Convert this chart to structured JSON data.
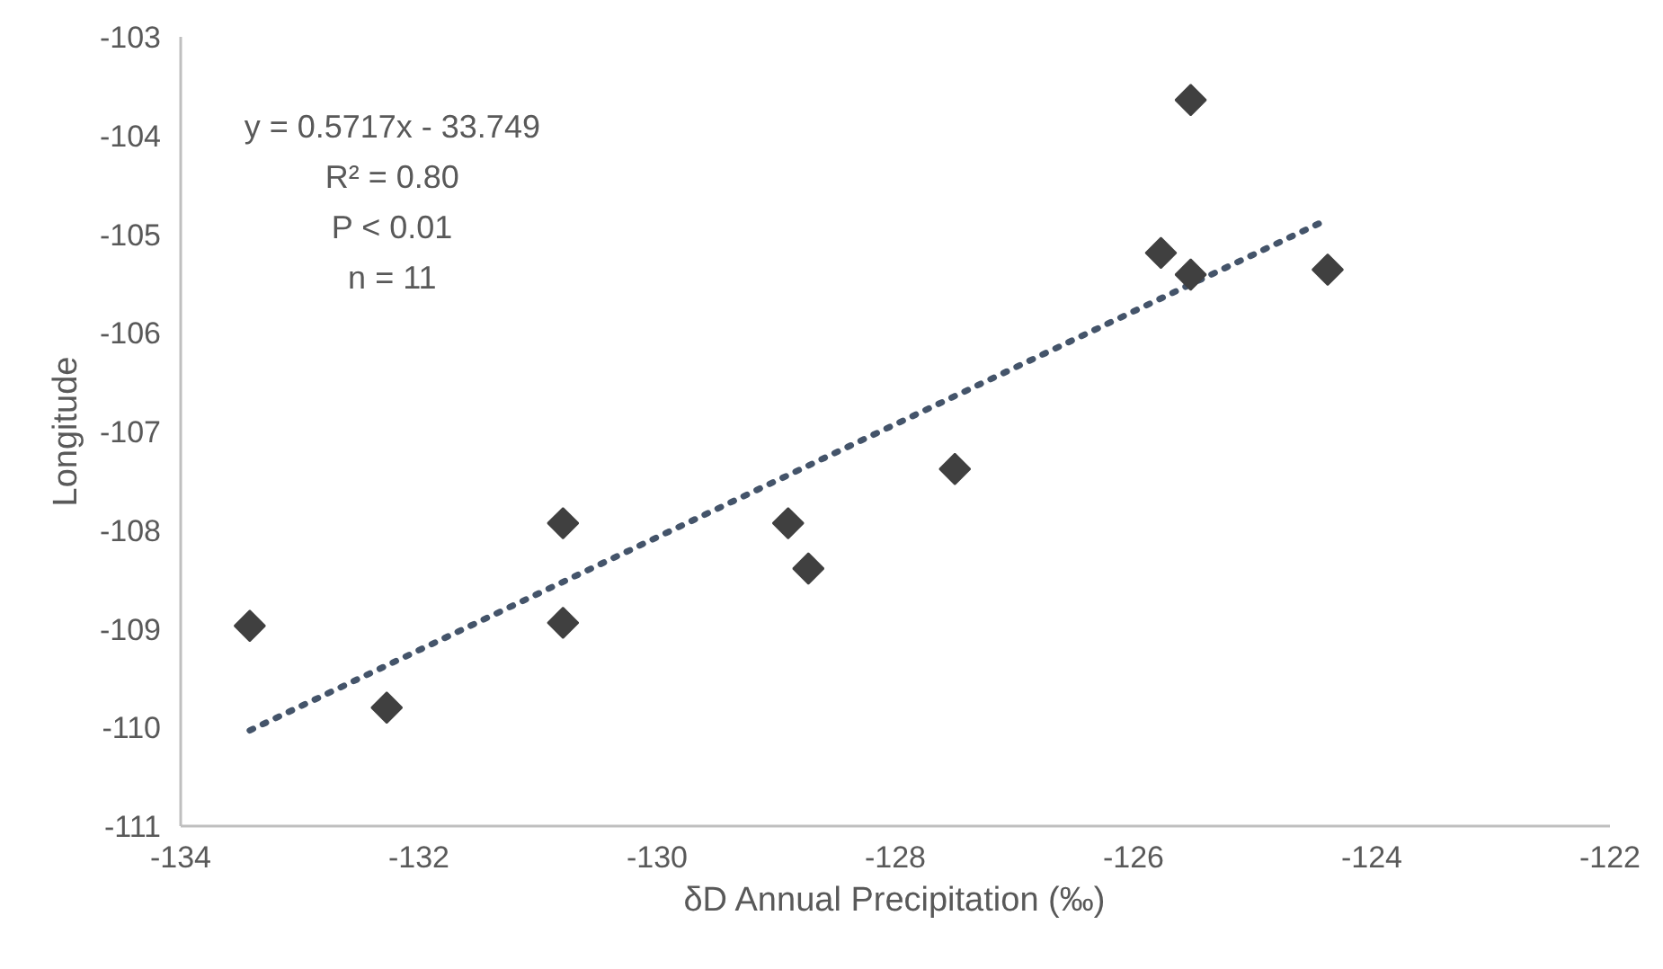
{
  "chart_data": {
    "type": "scatter",
    "xlabel": "δD Annual Precipitation (‰)",
    "ylabel": "Longitude",
    "xlim": [
      -134,
      -122
    ],
    "xticks": [
      -134,
      -132,
      -130,
      -128,
      -126,
      -124,
      -122
    ],
    "ylim": [
      -111,
      -103
    ],
    "yticks": [
      -111,
      -110,
      -109,
      -108,
      -107,
      -106,
      -105,
      -104,
      -103
    ],
    "grid": false,
    "series": [
      {
        "marker": "diamond",
        "color": "#404040",
        "x": [
          -133.42,
          -132.27,
          -130.79,
          -130.79,
          -128.9,
          -128.73,
          -127.5,
          -125.77,
          -125.52,
          -125.52,
          -124.37
        ],
        "values": [
          -108.97,
          -109.8,
          -107.93,
          -108.94,
          -107.93,
          -108.39,
          -107.38,
          -105.19,
          -103.64,
          -105.41,
          -105.36
        ]
      },
      {
        "type": "line",
        "color": "#44546a",
        "line_style": "dotted",
        "x": [
          -133.42,
          -124.37
        ],
        "values": [
          -110.03,
          -104.85
        ]
      }
    ],
    "annotations": [
      "y = 0.5717x - 33.749",
      "R² = 0.80",
      "P < 0.01",
      "n = 11"
    ]
  }
}
